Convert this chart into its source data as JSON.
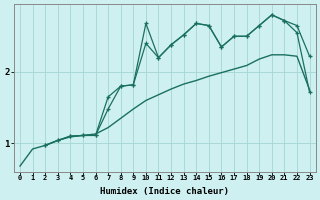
{
  "xlabel": "Humidex (Indice chaleur)",
  "bg_color": "#cef0f0",
  "grid_color": "#aad8d8",
  "line_color": "#1a7060",
  "xlim": [
    0,
    23
  ],
  "ylim": [
    0.6,
    2.95
  ],
  "yticks": [
    1,
    2
  ],
  "xticks": [
    0,
    1,
    2,
    3,
    4,
    5,
    6,
    7,
    8,
    9,
    10,
    11,
    12,
    13,
    14,
    15,
    16,
    17,
    18,
    19,
    20,
    21,
    22,
    23
  ],
  "line1_x": [
    0,
    1,
    2,
    3,
    4,
    5,
    6,
    7,
    8,
    9,
    10,
    11,
    12,
    13,
    14,
    15,
    16,
    17,
    18,
    19,
    20,
    21,
    22,
    23
  ],
  "line1_y": [
    0.68,
    0.92,
    0.97,
    1.04,
    1.09,
    1.11,
    1.13,
    1.22,
    1.35,
    1.48,
    1.6,
    1.68,
    1.76,
    1.83,
    1.88,
    1.94,
    1.99,
    2.04,
    2.09,
    2.18,
    2.24,
    2.24,
    2.22,
    1.75
  ],
  "line2_x": [
    2,
    3,
    4,
    5,
    6,
    7,
    8,
    9,
    10,
    11,
    12,
    13,
    14,
    15,
    16,
    17,
    18,
    19,
    20,
    21,
    22,
    23
  ],
  "line2_y": [
    0.97,
    1.04,
    1.1,
    1.11,
    1.11,
    1.65,
    1.8,
    1.82,
    2.68,
    2.2,
    2.38,
    2.52,
    2.68,
    2.65,
    2.35,
    2.5,
    2.5,
    2.65,
    2.8,
    2.72,
    2.65,
    2.22
  ],
  "line3_x": [
    2,
    3,
    4,
    5,
    6,
    7,
    8,
    9,
    10,
    11,
    12,
    13,
    14,
    15,
    16,
    17,
    18,
    19,
    20,
    21,
    22,
    23
  ],
  "line3_y": [
    0.97,
    1.04,
    1.1,
    1.11,
    1.11,
    1.48,
    1.8,
    1.82,
    2.4,
    2.2,
    2.38,
    2.52,
    2.68,
    2.65,
    2.35,
    2.5,
    2.5,
    2.65,
    2.8,
    2.72,
    2.55,
    1.72
  ]
}
